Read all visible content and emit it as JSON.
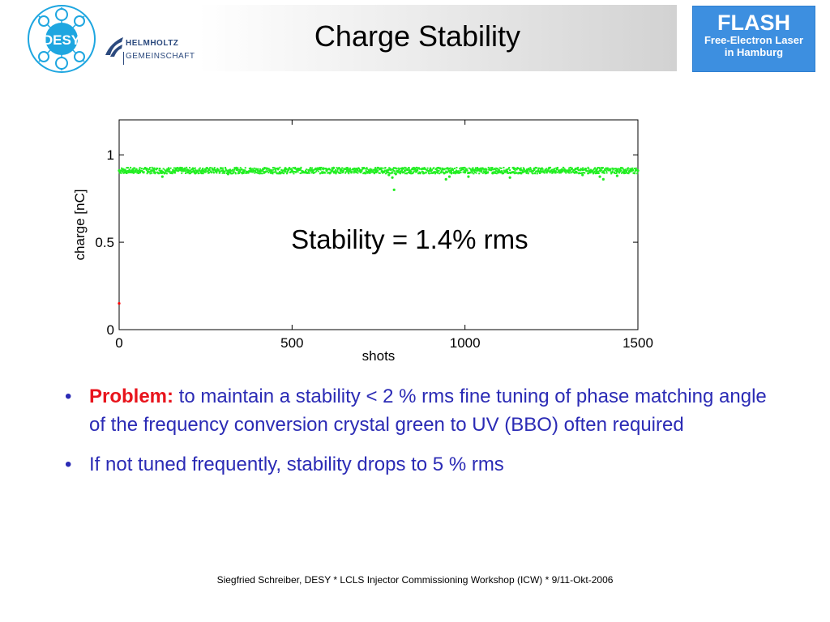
{
  "header": {
    "title": "Charge Stability",
    "desy_logo_text": "DESY",
    "helmholtz_line1": "HELMHOLTZ",
    "helmholtz_line2": "GEMEINSCHAFT",
    "flash": {
      "title": "FLASH",
      "line1": "Free-Electron Laser",
      "line2": "in Hamburg"
    }
  },
  "colors": {
    "flash_blue": "#3d8fe0",
    "desy_blue": "#1ea6e0",
    "series_green": "#22ee22",
    "outlier_red": "#ff0000",
    "problem_red": "#e8141c",
    "body_text_blue": "#2b2bb5"
  },
  "chart_data": {
    "type": "scatter",
    "xlabel": "shots",
    "ylabel": "charge [nC]",
    "xlim": [
      0,
      1500
    ],
    "ylim": [
      0,
      1.2
    ],
    "x_ticks": [
      "0",
      "500",
      "1000",
      "1500"
    ],
    "y_ticks": [
      "0",
      "0.5",
      "1"
    ],
    "annotation": "Stability = 1.4% rms",
    "grid": false,
    "series": [
      {
        "color": "#22ee22",
        "baseline": 0.91,
        "points": [
          [
            0,
            0.91
          ],
          [
            20,
            0.905
          ],
          [
            40,
            0.915
          ],
          [
            60,
            0.9
          ],
          [
            80,
            0.92
          ],
          [
            100,
            0.91
          ],
          [
            120,
            0.905
          ],
          [
            140,
            0.915
          ],
          [
            160,
            0.9
          ],
          [
            180,
            0.92
          ],
          [
            200,
            0.91
          ],
          [
            220,
            0.895
          ],
          [
            240,
            0.91
          ],
          [
            260,
            0.915
          ],
          [
            280,
            0.905
          ],
          [
            300,
            0.91
          ],
          [
            320,
            0.9
          ],
          [
            340,
            0.915
          ],
          [
            360,
            0.91
          ],
          [
            380,
            0.905
          ],
          [
            400,
            0.915
          ],
          [
            420,
            0.9
          ],
          [
            440,
            0.91
          ],
          [
            460,
            0.92
          ],
          [
            480,
            0.905
          ],
          [
            500,
            0.91
          ],
          [
            520,
            0.915
          ],
          [
            540,
            0.9
          ],
          [
            560,
            0.91
          ],
          [
            580,
            0.92
          ],
          [
            600,
            0.91
          ],
          [
            620,
            0.925
          ],
          [
            640,
            0.915
          ],
          [
            660,
            0.91
          ],
          [
            680,
            0.905
          ],
          [
            700,
            0.91
          ],
          [
            720,
            0.9
          ],
          [
            740,
            0.915
          ],
          [
            760,
            0.905
          ],
          [
            780,
            0.885
          ],
          [
            790,
            0.87
          ],
          [
            800,
            0.89
          ],
          [
            820,
            0.9
          ],
          [
            840,
            0.91
          ],
          [
            860,
            0.905
          ],
          [
            880,
            0.895
          ],
          [
            900,
            0.91
          ],
          [
            920,
            0.9
          ],
          [
            940,
            0.895
          ],
          [
            960,
            0.91
          ],
          [
            980,
            0.905
          ],
          [
            1000,
            0.9
          ],
          [
            1020,
            0.91
          ],
          [
            1040,
            0.915
          ],
          [
            1060,
            0.905
          ],
          [
            1080,
            0.895
          ],
          [
            1100,
            0.905
          ],
          [
            1120,
            0.91
          ],
          [
            1140,
            0.9
          ],
          [
            1160,
            0.915
          ],
          [
            1180,
            0.91
          ],
          [
            1200,
            0.915
          ],
          [
            1220,
            0.92
          ],
          [
            1240,
            0.91
          ],
          [
            1260,
            0.905
          ],
          [
            1280,
            0.915
          ],
          [
            1300,
            0.91
          ],
          [
            1320,
            0.92
          ],
          [
            1340,
            0.915
          ],
          [
            1360,
            0.905
          ],
          [
            1380,
            0.91
          ],
          [
            1400,
            0.9
          ],
          [
            1420,
            0.915
          ],
          [
            1440,
            0.91
          ],
          [
            1460,
            0.905
          ],
          [
            1480,
            0.915
          ],
          [
            1500,
            0.91
          ],
          [
            125,
            0.875
          ],
          [
            315,
            0.89
          ],
          [
            795,
            0.8
          ],
          [
            945,
            0.86
          ],
          [
            955,
            0.875
          ],
          [
            1010,
            0.875
          ],
          [
            1130,
            0.87
          ],
          [
            1340,
            0.885
          ],
          [
            1390,
            0.875
          ],
          [
            1400,
            0.86
          ],
          [
            1440,
            0.88
          ]
        ]
      },
      {
        "color": "#ff0000",
        "points": [
          [
            0,
            0.15
          ]
        ]
      }
    ]
  },
  "bullets": [
    {
      "label": "Problem:",
      "text": " to maintain a stability < 2 % rms fine tuning of phase matching angle of the frequency conversion crystal green to UV (BBO) often required"
    },
    {
      "label": "",
      "text": "If not tuned frequently, stability drops to 5 % rms"
    }
  ],
  "footer": "Siegfried Schreiber, DESY  * LCLS Injector Commissioning Workshop (ICW) * 9/11-Okt-2006"
}
